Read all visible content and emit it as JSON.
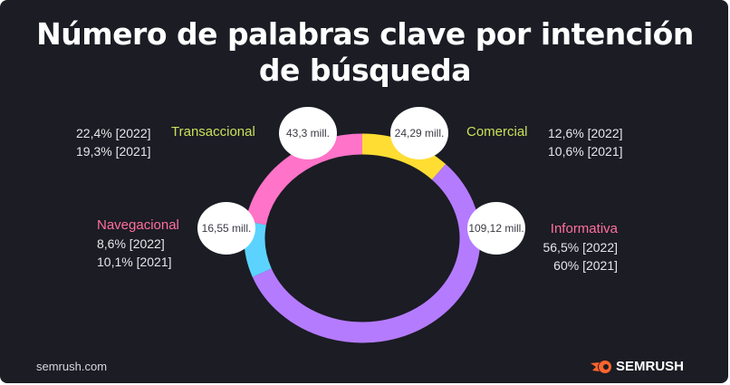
{
  "title": "Número de palabras clave por intención de búsqueda",
  "title_lines": [
    "Número de palabras clave por intención",
    "de búsqueda"
  ],
  "chart_data": {
    "type": "pie",
    "donut": true,
    "title": "Número de palabras clave por intención de búsqueda",
    "slices": [
      {
        "name": "Comercial",
        "value_label": "24,29 mill.",
        "value": 24.29,
        "pct_2022": "12,6% [2022]",
        "pct_2021": "10,6% [2021]",
        "color": "#FFDD33",
        "label_color": "#C8E05A"
      },
      {
        "name": "Informativa",
        "value_label": "109,12 mill.",
        "value": 109.12,
        "pct_2022": "56,5% [2022]",
        "pct_2021": "60% [2021]",
        "color": "#B57BFF",
        "label_color": "#FF6F9C"
      },
      {
        "name": "Navegacional",
        "value_label": "16,55 mill.",
        "value": 16.55,
        "pct_2022": "8,6% [2022]",
        "pct_2021": "10,1% [2021]",
        "color": "#5CD3FF",
        "label_color": "#FF6F9C"
      },
      {
        "name": "Transaccional",
        "value_label": "43,3 mill.",
        "value": 43.3,
        "pct_2022": "22,4% [2022]",
        "pct_2021": "19,3% [2021]",
        "color": "#FF73C8",
        "label_color": "#C8E05A"
      }
    ]
  },
  "footer": {
    "source": "semrush.com",
    "brand": "SEMRUSH",
    "brand_icon": "semrush-flame-icon",
    "brand_color": "#FF642D"
  }
}
